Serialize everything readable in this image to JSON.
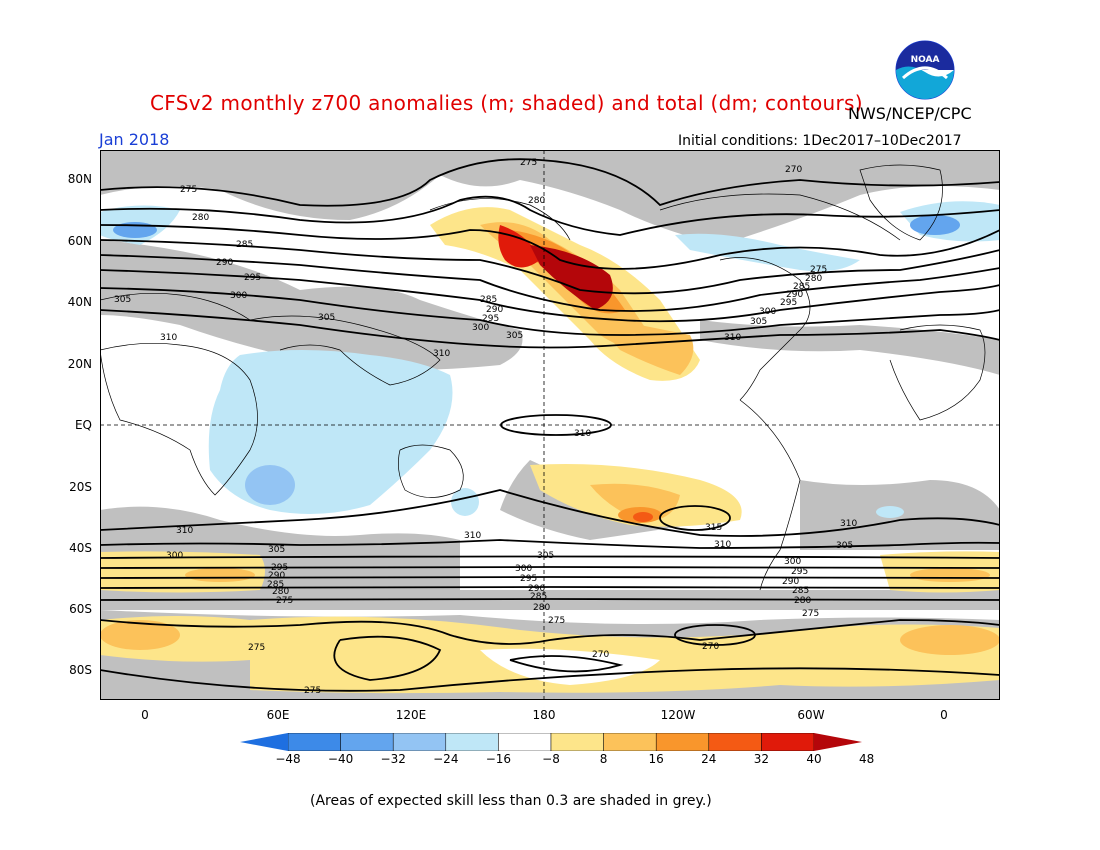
{
  "header": {
    "title": "CFSv2 monthly z700 anomalies (m; shaded) and total (dm; contours)",
    "agency": "NWS/NCEP/CPC",
    "date": "Jan 2018",
    "initial_conditions": "Initial conditions: 1Dec2017–10Dec2017",
    "logo_text": "NOAA"
  },
  "axes": {
    "lat_labels": [
      "80N",
      "60N",
      "40N",
      "20N",
      "EQ",
      "20S",
      "40S",
      "60S",
      "80S"
    ],
    "lon_labels": [
      "0",
      "60E",
      "120E",
      "180",
      "120W",
      "60W",
      "0"
    ]
  },
  "colorbar": {
    "ticks": [
      "−48",
      "−40",
      "−32",
      "−24",
      "−16",
      "−8",
      "8",
      "16",
      "24",
      "32",
      "40",
      "48"
    ],
    "colors": [
      "#1e6fe0",
      "#3d8ae8",
      "#63a5ee",
      "#93c4f3",
      "#bfe7f7",
      "#ffffff",
      "#fde58a",
      "#fcc25a",
      "#f9962c",
      "#f45a14",
      "#e01a0a",
      "#b4060a"
    ]
  },
  "footnote": "(Areas of expected skill less than 0.3 are shaded in grey.)",
  "contour_labels": [
    "275",
    "280",
    "285",
    "290",
    "295",
    "300",
    "305",
    "310",
    "315",
    "270"
  ],
  "colors": {
    "skill_grey": "#c0c0c0",
    "title_red": "#e00000",
    "date_blue": "#1a3fd6"
  }
}
